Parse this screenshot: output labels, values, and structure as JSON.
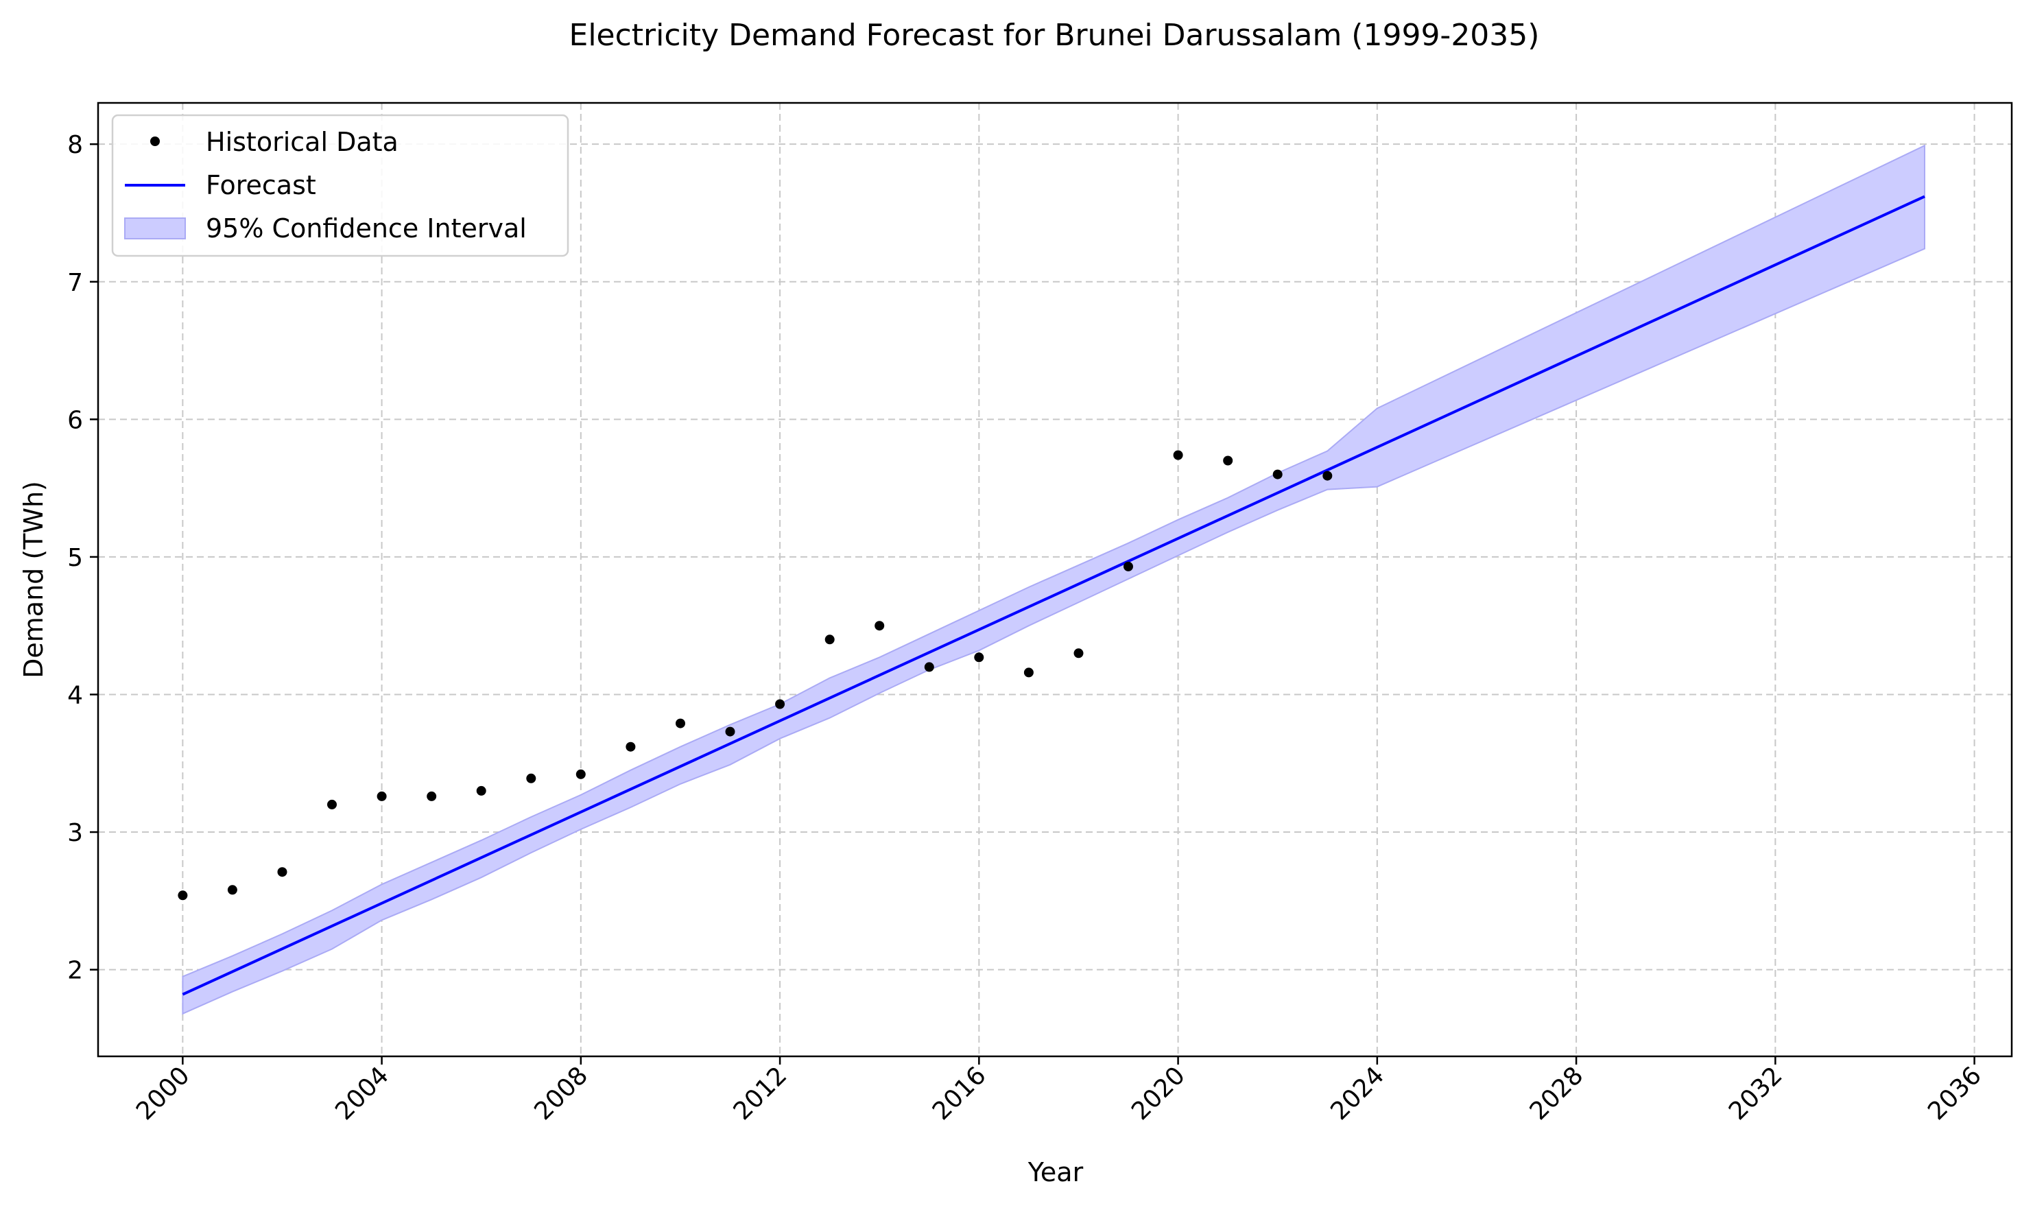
{
  "chart_data": {
    "type": "line",
    "title": "Electricity Demand Forecast for Brunei Darussalam (1999-2035)",
    "xlabel": "Year",
    "ylabel": "Demand (TWh)",
    "xlim": [
      1998.3,
      2036.75
    ],
    "ylim": [
      1.37,
      8.3
    ],
    "x_ticks": [
      2000,
      2004,
      2008,
      2012,
      2016,
      2020,
      2024,
      2028,
      2032,
      2036
    ],
    "y_ticks": [
      2,
      3,
      4,
      5,
      6,
      7,
      8
    ],
    "grid": true,
    "legend_position": "top-left",
    "legend": [
      "Historical Data",
      "Forecast",
      "95% Confidence Interval"
    ],
    "colors": {
      "historical": "#000000",
      "forecast": "#0000ff",
      "confidence_fill": "#ccccff",
      "confidence_edge": "#aaaaf5",
      "grid": "#c8c8c8"
    },
    "series": [
      {
        "name": "Historical Data",
        "type": "scatter",
        "x": [
          2000,
          2001,
          2002,
          2003,
          2004,
          2005,
          2006,
          2007,
          2008,
          2009,
          2010,
          2011,
          2012,
          2013,
          2014,
          2015,
          2016,
          2017,
          2018,
          2019,
          2020,
          2021,
          2022,
          2023
        ],
        "y": [
          2.54,
          2.58,
          2.71,
          3.2,
          3.26,
          3.26,
          3.3,
          3.39,
          3.42,
          3.62,
          3.79,
          3.73,
          3.93,
          4.4,
          4.5,
          4.2,
          4.27,
          4.16,
          4.3,
          4.93,
          5.74,
          5.7,
          5.6,
          5.59
        ]
      },
      {
        "name": "Forecast",
        "type": "line",
        "x": [
          2000,
          2035
        ],
        "y": [
          1.82,
          7.62
        ]
      },
      {
        "name": "95% Confidence Interval",
        "type": "band",
        "x": [
          2000,
          2001,
          2002,
          2003,
          2004,
          2005,
          2006,
          2007,
          2008,
          2009,
          2010,
          2011,
          2012,
          2013,
          2014,
          2015,
          2016,
          2017,
          2018,
          2019,
          2020,
          2021,
          2022,
          2023,
          2024,
          2035
        ],
        "upper": [
          1.95,
          2.1,
          2.26,
          2.43,
          2.62,
          2.78,
          2.94,
          3.11,
          3.27,
          3.45,
          3.62,
          3.78,
          3.93,
          4.12,
          4.27,
          4.44,
          4.61,
          4.78,
          4.94,
          5.1,
          5.27,
          5.43,
          5.61,
          5.77,
          6.08,
          7.99
        ],
        "lower": [
          1.68,
          1.84,
          1.99,
          2.15,
          2.36,
          2.51,
          2.67,
          2.85,
          3.02,
          3.18,
          3.35,
          3.49,
          3.68,
          3.83,
          4.01,
          4.18,
          4.32,
          4.5,
          4.67,
          4.84,
          5.01,
          5.18,
          5.34,
          5.49,
          5.51,
          7.24
        ]
      }
    ]
  }
}
